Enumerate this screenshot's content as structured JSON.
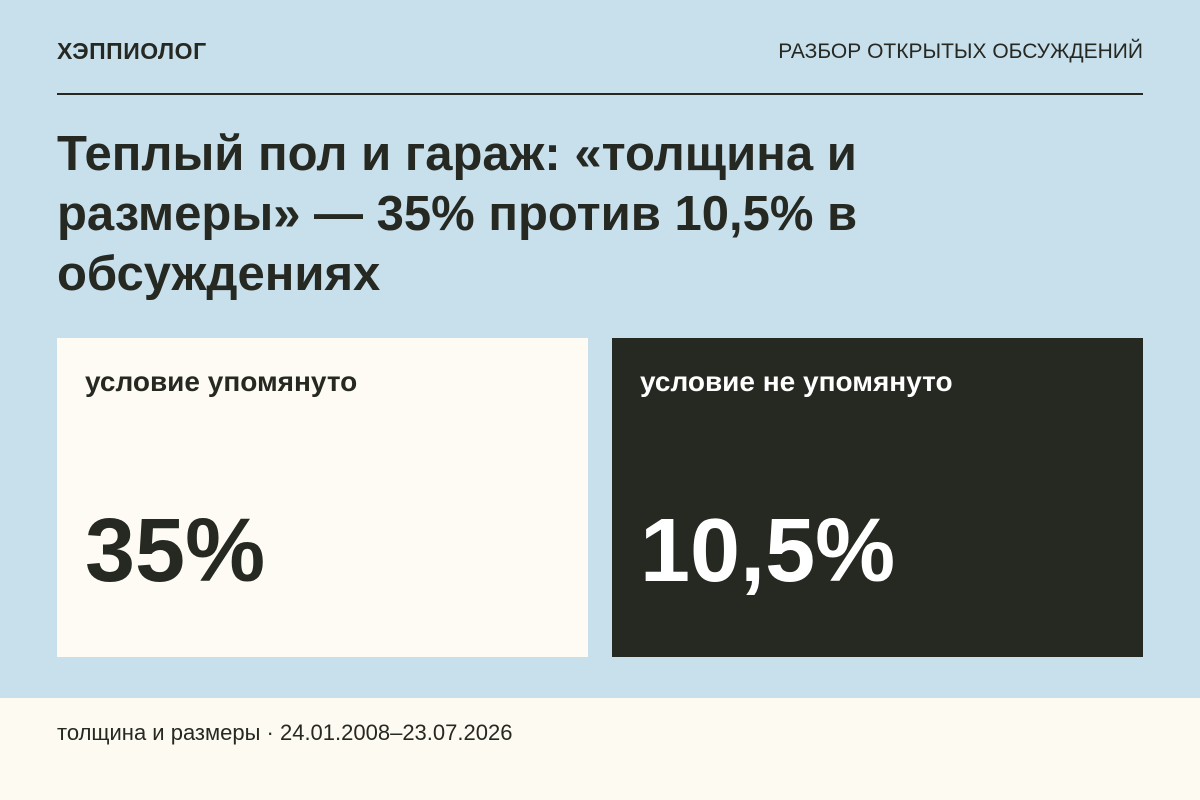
{
  "header": {
    "brand": "ХЭППИОЛОГ",
    "section": "РАЗБОР ОТКРЫТЫХ ОБСУЖДЕНИЙ"
  },
  "title": "Теплый пол и гараж: «толщина и размеры» — 35% против 10,5% в обсуждениях",
  "cards": [
    {
      "label": "условие упомянуто",
      "value": "35%"
    },
    {
      "label": "условие не упомянуто",
      "value": "10,5%"
    }
  ],
  "footer": "толщина и размеры · 24.01.2008–23.07.2026"
}
